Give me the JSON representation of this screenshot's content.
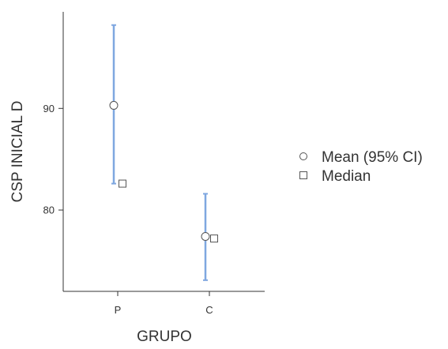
{
  "chart_data": {
    "type": "scatter",
    "xlabel": "GRUPO",
    "ylabel": "CSP INICIAL D",
    "categories": [
      "P",
      "C"
    ],
    "ylim": [
      72,
      99.5
    ],
    "yticks": [
      80,
      90
    ],
    "grid": false,
    "legend_position": "right",
    "series": [
      {
        "name": "Mean (95% CI)",
        "marker": "circle",
        "values": [
          90.3,
          77.4
        ],
        "ci_lower": [
          82.6,
          73.1
        ],
        "ci_upper": [
          98.2,
          81.6
        ]
      },
      {
        "name": "Median",
        "marker": "square",
        "values": [
          82.6,
          77.2
        ]
      }
    ],
    "colors": {
      "error_bar": "#7fa7e0",
      "marker_stroke": "#555555",
      "marker_fill": "#ffffff",
      "axis": "#333333",
      "text": "#333333"
    }
  }
}
